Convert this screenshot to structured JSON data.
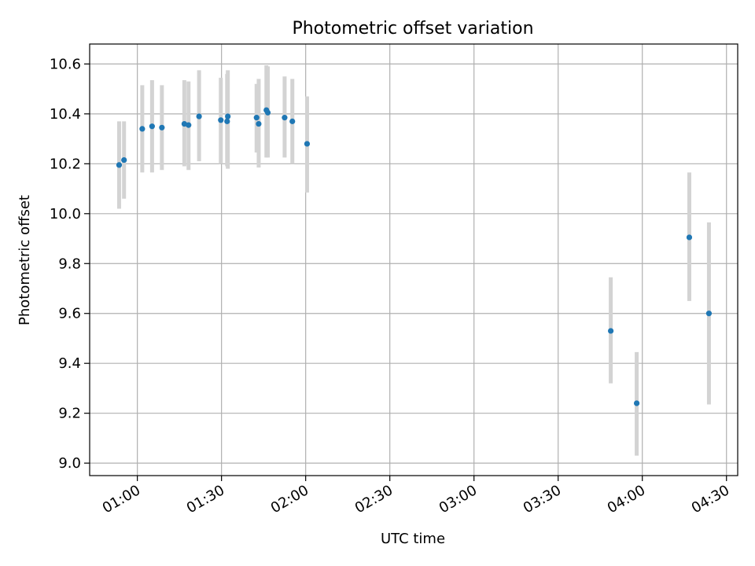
{
  "chart_data": {
    "type": "scatter",
    "title": "Photometric offset variation",
    "xlabel": "UTC time",
    "ylabel": "Photometric offset",
    "x_tick_labels": [
      "01:00",
      "01:30",
      "02:00",
      "02:30",
      "03:00",
      "03:30",
      "04:00",
      "04:30"
    ],
    "x_ticks": [
      "01:00",
      "01:30",
      "02:00",
      "02:30",
      "03:00",
      "03:30",
      "04:00",
      "04:30"
    ],
    "y_ticks": [
      9.0,
      9.2,
      9.4,
      9.6,
      9.8,
      10.0,
      10.2,
      10.4,
      10.6
    ],
    "y_tick_labels": [
      "9.0",
      "9.2",
      "9.4",
      "9.6",
      "9.8",
      "10.0",
      "10.2",
      "10.4",
      "10.6"
    ],
    "xlim": [
      "00:43",
      "04:34"
    ],
    "ylim": [
      8.95,
      10.68
    ],
    "grid": true,
    "colors": {
      "point": "#1f77b4",
      "errorbar": "#d3d3d3",
      "grid": "#b0b0b0"
    },
    "series": [
      {
        "points": [
          {
            "time": "00:53:30",
            "y": 10.195,
            "ylo": 10.02,
            "yhi": 10.37
          },
          {
            "time": "00:55:15",
            "y": 10.215,
            "ylo": 10.06,
            "yhi": 10.37
          },
          {
            "time": "01:01:45",
            "y": 10.34,
            "ylo": 10.165,
            "yhi": 10.515
          },
          {
            "time": "01:05:15",
            "y": 10.35,
            "ylo": 10.165,
            "yhi": 10.535
          },
          {
            "time": "01:08:45",
            "y": 10.345,
            "ylo": 10.175,
            "yhi": 10.515
          },
          {
            "time": "01:16:45",
            "y": 10.36,
            "ylo": 10.19,
            "yhi": 10.535
          },
          {
            "time": "01:18:15",
            "y": 10.355,
            "ylo": 10.175,
            "yhi": 10.53
          },
          {
            "time": "01:22:00",
            "y": 10.39,
            "ylo": 10.21,
            "yhi": 10.575
          },
          {
            "time": "01:29:45",
            "y": 10.375,
            "ylo": 10.2,
            "yhi": 10.545
          },
          {
            "time": "01:32:15",
            "y": 10.39,
            "ylo": 10.18,
            "yhi": 10.575
          },
          {
            "time": "01:32:00",
            "y": 10.37,
            "ylo": 10.19,
            "yhi": 10.56
          },
          {
            "time": "01:42:30",
            "y": 10.385,
            "ylo": 10.245,
            "yhi": 10.52
          },
          {
            "time": "01:43:15",
            "y": 10.36,
            "ylo": 10.185,
            "yhi": 10.54
          },
          {
            "time": "01:46:00",
            "y": 10.415,
            "ylo": 10.225,
            "yhi": 10.595
          },
          {
            "time": "01:46:30",
            "y": 10.405,
            "ylo": 10.225,
            "yhi": 10.59
          },
          {
            "time": "01:52:30",
            "y": 10.385,
            "ylo": 10.225,
            "yhi": 10.55
          },
          {
            "time": "01:55:15",
            "y": 10.37,
            "ylo": 10.2,
            "yhi": 10.54
          },
          {
            "time": "02:00:30",
            "y": 10.28,
            "ylo": 10.085,
            "yhi": 10.47
          },
          {
            "time": "03:48:45",
            "y": 9.53,
            "ylo": 9.32,
            "yhi": 9.745
          },
          {
            "time": "03:58:00",
            "y": 9.24,
            "ylo": 9.03,
            "yhi": 9.445
          },
          {
            "time": "04:16:45",
            "y": 9.905,
            "ylo": 9.65,
            "yhi": 10.165
          },
          {
            "time": "04:23:45",
            "y": 9.6,
            "ylo": 9.235,
            "yhi": 9.965
          }
        ]
      }
    ]
  }
}
